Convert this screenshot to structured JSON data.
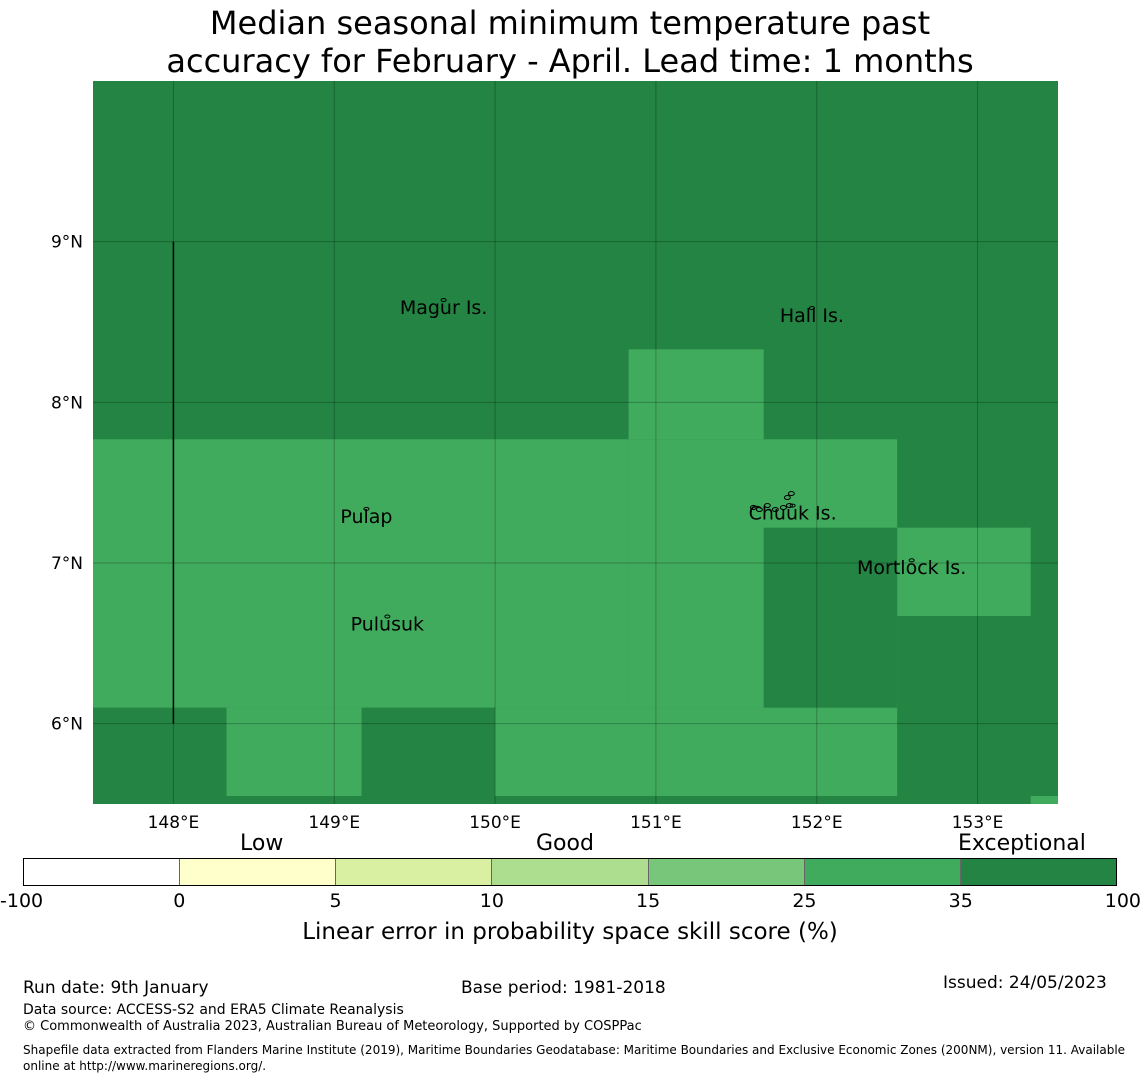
{
  "title": {
    "line1": "Median seasonal minimum temperature past",
    "line2": "accuracy for February - April. Lead time: 1 months"
  },
  "map": {
    "lon_range": [
      147.5,
      153.5
    ],
    "lat_range": [
      5.5,
      10.0
    ],
    "lon_ticks": [
      {
        "value": 148,
        "label": "148°E"
      },
      {
        "value": 149,
        "label": "149°E"
      },
      {
        "value": 150,
        "label": "150°E"
      },
      {
        "value": 151,
        "label": "151°E"
      },
      {
        "value": 152,
        "label": "152°E"
      },
      {
        "value": 153,
        "label": "153°E"
      }
    ],
    "lat_ticks": [
      {
        "value": 9,
        "label": "9°N"
      },
      {
        "value": 8,
        "label": "8°N"
      },
      {
        "value": 7,
        "label": "7°N"
      },
      {
        "value": 6,
        "label": "6°N"
      }
    ],
    "background_color": "#238443",
    "cells": [
      {
        "lon": [
          147.5,
          153.5
        ],
        "lat": [
          5.5,
          10.0
        ],
        "category": "Exceptional",
        "color": "#238443"
      },
      {
        "lon": [
          147.5,
          150.83
        ],
        "lat": [
          6.1,
          7.77
        ],
        "category": "35",
        "color": "#41ab5d"
      },
      {
        "lon": [
          150.83,
          152.5
        ],
        "lat": [
          6.1,
          7.77
        ],
        "category": "35",
        "color": "#41ab5d"
      },
      {
        "lon": [
          150.83,
          151.67
        ],
        "lat": [
          7.77,
          8.33
        ],
        "category": "35",
        "color": "#41ab5d"
      },
      {
        "lon": [
          148.33,
          149.17
        ],
        "lat": [
          5.55,
          6.1
        ],
        "category": "35",
        "color": "#41ab5d"
      },
      {
        "lon": [
          150.0,
          152.5
        ],
        "lat": [
          5.55,
          6.1
        ],
        "category": "35",
        "color": "#41ab5d"
      },
      {
        "lon": [
          152.5,
          153.33
        ],
        "lat": [
          6.67,
          7.22
        ],
        "category": "35",
        "color": "#41ab5d"
      },
      {
        "lon": [
          153.33,
          153.5
        ],
        "lat": [
          5.5,
          5.55
        ],
        "category": "35",
        "color": "#41ab5d"
      },
      {
        "lon": [
          151.67,
          152.5
        ],
        "lat": [
          6.1,
          7.22
        ],
        "category": "Exceptional",
        "color": "#238443"
      }
    ],
    "boundary_line": {
      "lon": 148.0,
      "lat": [
        6.0,
        9.0
      ]
    },
    "islands": [
      {
        "name": "Magur Is.",
        "lon": 149.68,
        "lat": 8.55
      },
      {
        "name": "Hall Is.",
        "lon": 151.97,
        "lat": 8.5
      },
      {
        "name": "Pulap",
        "lon": 149.2,
        "lat": 7.25
      },
      {
        "name": "Chuuk Is.",
        "lon": 151.85,
        "lat": 7.27
      },
      {
        "name": "Mortlock Is.",
        "lon": 152.59,
        "lat": 6.93
      },
      {
        "name": "Pulusuk",
        "lon": 149.33,
        "lat": 6.58
      }
    ]
  },
  "legend": {
    "category_labels": [
      {
        "text": "Low"
      },
      {
        "text": "Good"
      },
      {
        "text": "Exceptional"
      }
    ],
    "segments": [
      {
        "from": -100,
        "to": 0,
        "color": "#ffffff"
      },
      {
        "from": 0,
        "to": 5,
        "color": "#ffffcc"
      },
      {
        "from": 5,
        "to": 10,
        "color": "#d9f0a3"
      },
      {
        "from": 10,
        "to": 15,
        "color": "#addd8e"
      },
      {
        "from": 15,
        "to": 25,
        "color": "#78c679"
      },
      {
        "from": 25,
        "to": 35,
        "color": "#41ab5d"
      },
      {
        "from": 35,
        "to": 100,
        "color": "#238443"
      }
    ],
    "ticks": [
      "-100",
      "0",
      "5",
      "10",
      "15",
      "25",
      "35",
      "100"
    ],
    "title": "Linear error in probability space skill score (%)"
  },
  "footer": {
    "run_date": "Run date: 9th January",
    "base_period": "Base period: 1981-2018",
    "issued": "Issued: 24/05/2023",
    "data_source": "Data source: ACCESS-S2 and ERA5 Climate Reanalysis",
    "copyright": "© Commonwealth of Australia 2023, Australian Bureau of Meteorology, Supported by COSPPac",
    "shapefile": "Shapefile data extracted from Flanders Marine Institute (2019), Maritime Boundaries Geodatabase: Maritime Boundaries and Exclusive Economic Zones (200NM), version 11. Available online at http://www.marineregions.org/."
  }
}
